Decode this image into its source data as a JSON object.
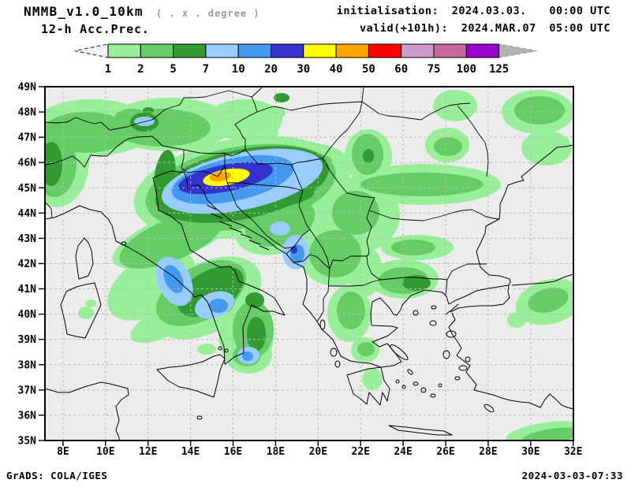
{
  "header": {
    "model": "NMMB_v1.0_10km",
    "grid_note": "( . x . degree )",
    "product": "12-h Acc.Prec.",
    "init_label": "initialisation:",
    "init_date": "2024.03.03.",
    "init_time": "00:00 UTC",
    "valid_label": "valid(+101h):",
    "valid_date": "2024.MAR.07",
    "valid_time": "05:00 UTC"
  },
  "colorbar": {
    "levels": [
      "1",
      "2",
      "5",
      "7",
      "10",
      "20",
      "30",
      "40",
      "50",
      "60",
      "75",
      "100",
      "125"
    ],
    "right_arrow_color": "#b3b3b3",
    "left_arrow_fill": "#f2f2f2"
  },
  "map": {
    "lat_labels": [
      "49N",
      "48N",
      "47N",
      "46N",
      "45N",
      "44N",
      "43N",
      "42N",
      "41N",
      "40N",
      "39N",
      "38N",
      "37N",
      "36N",
      "35N"
    ],
    "lon_labels": [
      "8E",
      "10E",
      "12E",
      "14E",
      "16E",
      "18E",
      "20E",
      "22E",
      "24E",
      "26E",
      "28E",
      "30E",
      "32E"
    ],
    "bg_color": "#ececec",
    "grid_color": "#b9b9b9",
    "coast_color": "#000000"
  },
  "footer": {
    "left": "GrADS: COLA/IGES",
    "right": "2024-03-03-07:33"
  },
  "chart_data": {
    "type": "filled_contour_map",
    "variable": "12-h accumulated precipitation (mm)",
    "model": "NMMB_v1.0_10km",
    "init": "2024.03.03. 00:00 UTC",
    "valid": "2024.MAR.07 05:00 UTC (+101h)",
    "lat_range_n": [
      35,
      49
    ],
    "lon_ticks_deg_e": [
      8,
      10,
      12,
      14,
      16,
      18,
      20,
      22,
      24,
      26,
      28,
      30,
      32
    ],
    "lat_ticks_deg_n": [
      35,
      36,
      37,
      38,
      39,
      40,
      41,
      42,
      43,
      44,
      45,
      46,
      47,
      48,
      49
    ],
    "contour_levels_mm": [
      1,
      2,
      5,
      7,
      10,
      20,
      30,
      40,
      50,
      60,
      75,
      100,
      125
    ],
    "palette": [
      {
        "range": "1-2",
        "color": "#99ee99"
      },
      {
        "range": "2-5",
        "color": "#66cc66"
      },
      {
        "range": "5-7",
        "color": "#339933"
      },
      {
        "range": "7-10",
        "color": "#99ccff"
      },
      {
        "range": "10-20",
        "color": "#4499ee"
      },
      {
        "range": "20-30",
        "color": "#3333cc"
      },
      {
        "range": "30-40",
        "color": "#ffff00"
      },
      {
        "range": "40-50",
        "color": "#ffa500"
      },
      {
        "range": "50-60",
        "color": "#ff0000"
      },
      {
        "range": "60-75",
        "color": "#cc99cc"
      },
      {
        "range": "75-100",
        "color": "#c5699b"
      },
      {
        "range": "100-125",
        "color": "#9900cc"
      }
    ],
    "notable_features": [
      {
        "area": "NE Italy / Slovenia / NW Croatia",
        "peak_band_mm": "40-50"
      },
      {
        "area": "Alpine band Switzerland-Austria",
        "peak_band_mm": "7-10"
      },
      {
        "area": "Campania-Calabria, S Italy",
        "peak_band_mm": "10-20"
      },
      {
        "area": "Montenegro coast",
        "peak_band_mm": "20-30"
      },
      {
        "area": "Southern Carpathians, Romania",
        "peak_band_mm": "2-5"
      },
      {
        "area": "SW Bulgaria",
        "peak_band_mm": "5-7"
      },
      {
        "area": "NW Turkey",
        "peak_band_mm": "2-5"
      }
    ]
  }
}
